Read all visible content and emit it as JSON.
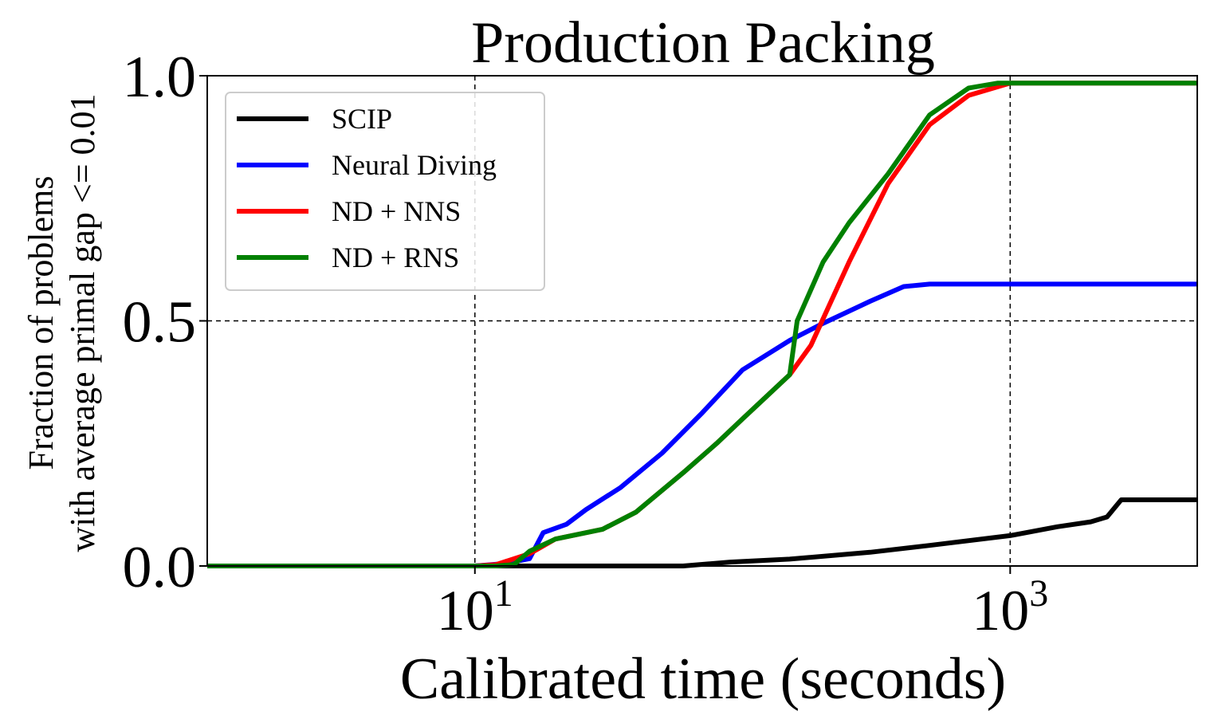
{
  "chart_data": {
    "type": "line",
    "title": "Production Packing",
    "xlabel": "Calibrated time (seconds)",
    "ylabel_lines": [
      "Fraction of problems",
      "with average primal gap <= 0.01"
    ],
    "x_scale": "log",
    "xlim": [
      1,
      5000
    ],
    "ylim": [
      0,
      1
    ],
    "x_ticks": [
      {
        "value": 10,
        "base": "10",
        "exp": "1"
      },
      {
        "value": 1000,
        "base": "10",
        "exp": "3"
      }
    ],
    "y_ticks": [
      {
        "value": 0,
        "label": "0.0"
      },
      {
        "value": 0.5,
        "label": "0.5"
      },
      {
        "value": 1,
        "label": "1.0"
      }
    ],
    "grid": true,
    "legend_position": "top-left",
    "series": [
      {
        "name": "SCIP",
        "color": "#000000",
        "x": [
          1,
          20,
          60,
          90,
          150,
          300,
          500,
          1000,
          1500,
          2000,
          2300,
          2600,
          5000
        ],
        "y": [
          0,
          0,
          0,
          0.008,
          0.014,
          0.028,
          0.042,
          0.062,
          0.08,
          0.09,
          0.1,
          0.135,
          0.135
        ]
      },
      {
        "name": "Neural Diving",
        "color": "#0000ff",
        "x": [
          1,
          10,
          13,
          16,
          18,
          22,
          26,
          35,
          50,
          70,
          100,
          150,
          200,
          300,
          400,
          500,
          5000
        ],
        "y": [
          0,
          0,
          0.005,
          0.015,
          0.068,
          0.085,
          0.115,
          0.16,
          0.23,
          0.31,
          0.4,
          0.46,
          0.495,
          0.54,
          0.57,
          0.575,
          0.575
        ]
      },
      {
        "name": "ND + NNS",
        "color": "#ff0000",
        "x": [
          1,
          10,
          12,
          16,
          20,
          30,
          40,
          60,
          80,
          100,
          150,
          180,
          250,
          350,
          500,
          700,
          1000,
          5000
        ],
        "y": [
          0,
          0,
          0.003,
          0.025,
          0.055,
          0.075,
          0.11,
          0.19,
          0.25,
          0.3,
          0.39,
          0.45,
          0.62,
          0.78,
          0.9,
          0.96,
          0.985,
          0.985
        ]
      },
      {
        "name": "ND + RNS",
        "color": "#008000",
        "x": [
          1,
          12,
          14,
          16,
          20,
          30,
          40,
          60,
          80,
          100,
          150,
          160,
          200,
          250,
          350,
          500,
          700,
          900,
          5000
        ],
        "y": [
          0,
          0,
          0.003,
          0.03,
          0.055,
          0.075,
          0.11,
          0.19,
          0.25,
          0.3,
          0.39,
          0.5,
          0.62,
          0.7,
          0.8,
          0.92,
          0.975,
          0.985,
          0.985
        ]
      }
    ]
  }
}
